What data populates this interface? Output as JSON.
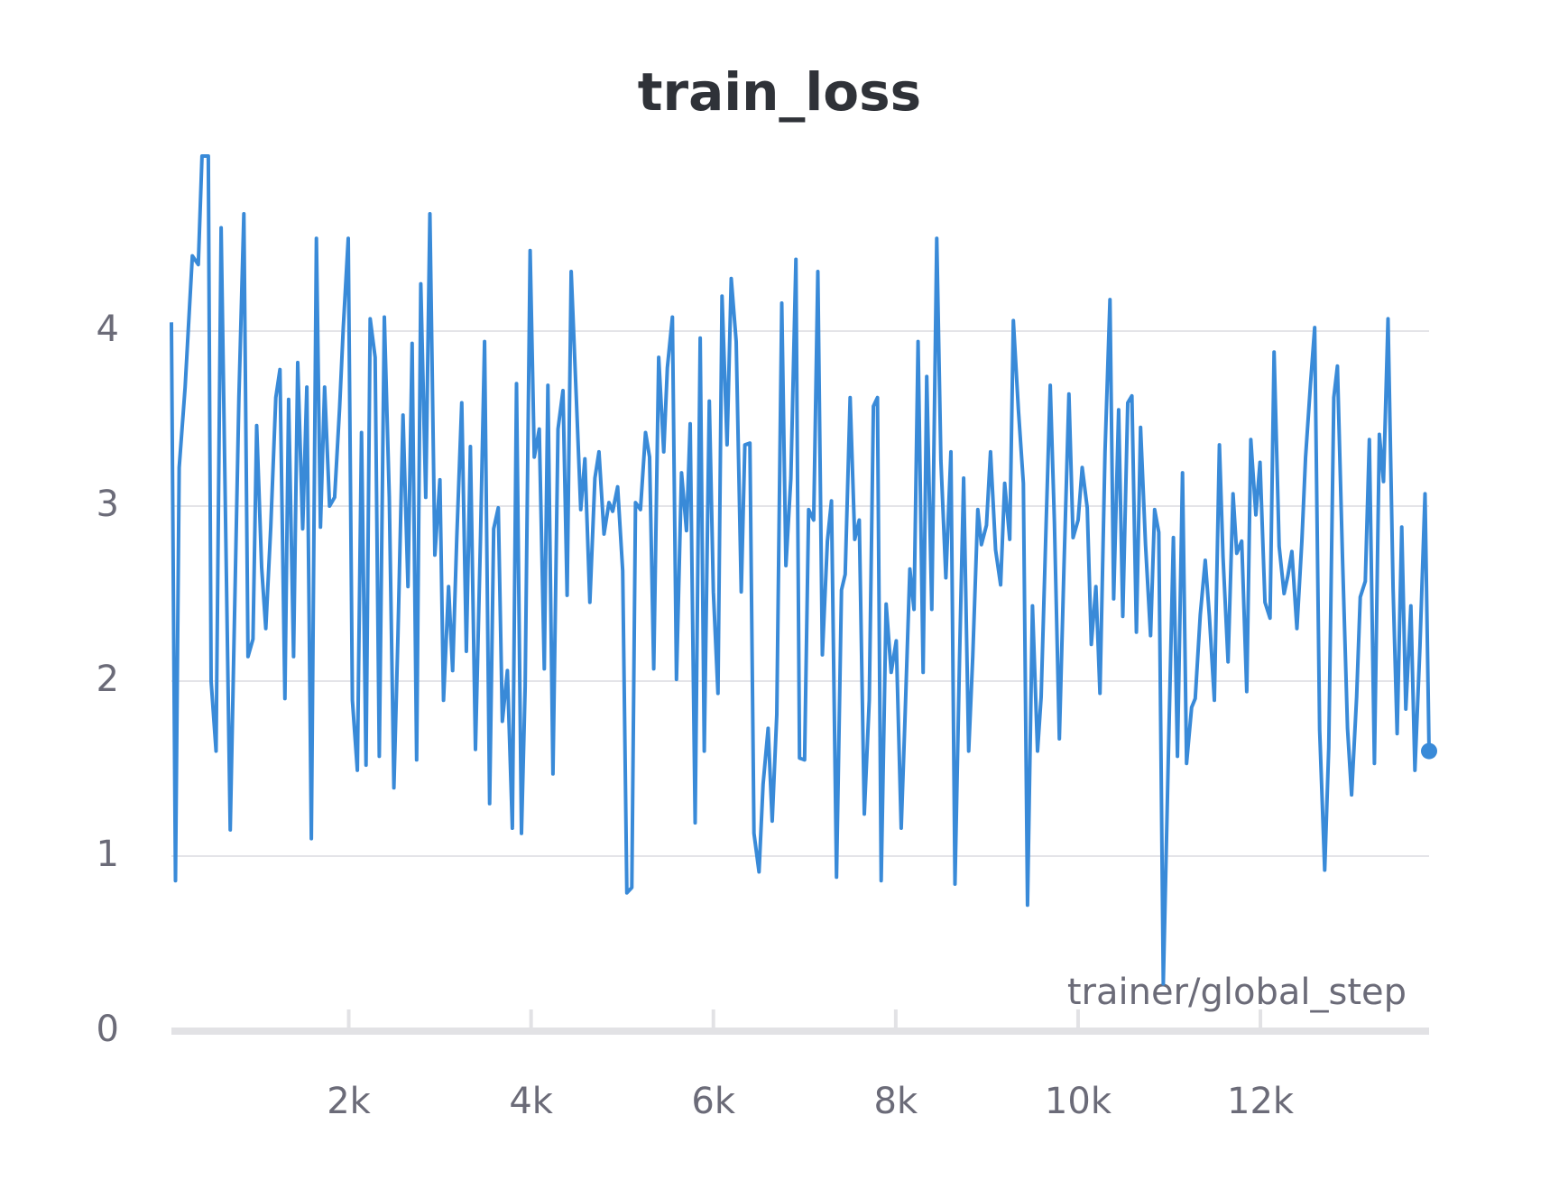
{
  "chart_data": {
    "type": "line",
    "title": "train_loss",
    "x_label": "trainer/global_step",
    "xlim": [
      55,
      13850
    ],
    "ylim": [
      0,
      5
    ],
    "yticks": [
      0,
      1,
      2,
      3,
      4
    ],
    "xticks": [
      {
        "value": 2000,
        "label": "2k"
      },
      {
        "value": 4000,
        "label": "4k"
      },
      {
        "value": 6000,
        "label": "6k"
      },
      {
        "value": 8000,
        "label": "8k"
      },
      {
        "value": 10000,
        "label": "10k"
      },
      {
        "value": 12000,
        "label": "12k"
      }
    ],
    "grid": true,
    "series": [
      {
        "color": "#398ad8",
        "x": [
          55,
          100,
          140,
          205,
          285,
          350,
          390,
          460,
          490,
          545,
          600,
          700,
          795,
          850,
          895,
          950,
          990,
          1045,
          1090,
          1145,
          1200,
          1245,
          1300,
          1340,
          1395,
          1440,
          1495,
          1540,
          1590,
          1645,
          1690,
          1735,
          1790,
          1845,
          1900,
          1940,
          1995,
          2040,
          2095,
          2140,
          2190,
          2235,
          2290,
          2335,
          2390,
          2445,
          2495,
          2540,
          2595,
          2650,
          2695,
          2745,
          2790,
          2845,
          2890,
          2945,
          3000,
          3040,
          3095,
          3140,
          3185,
          3240,
          3290,
          3335,
          3390,
          3445,
          3490,
          3545,
          3590,
          3640,
          3685,
          3740,
          3795,
          3840,
          3895,
          3935,
          3990,
          4035,
          4090,
          4145,
          4185,
          4240,
          4295,
          4350,
          4395,
          4440,
          4495,
          4545,
          4590,
          4645,
          4700,
          4745,
          4800,
          4855,
          4895,
          4950,
          5005,
          5050,
          5105,
          5145,
          5200,
          5255,
          5300,
          5345,
          5400,
          5455,
          5495,
          5550,
          5595,
          5650,
          5705,
          5745,
          5800,
          5855,
          5900,
          5955,
          6000,
          6050,
          6095,
          6150,
          6195,
          6250,
          6305,
          6345,
          6400,
          6445,
          6500,
          6545,
          6600,
          6645,
          6695,
          6750,
          6795,
          6850,
          6905,
          6945,
          7000,
          7045,
          7100,
          7145,
          7195,
          7250,
          7295,
          7350,
          7405,
          7445,
          7500,
          7550,
          7600,
          7655,
          7710,
          7755,
          7800,
          7840,
          7895,
          7950,
          8005,
          8060,
          8100,
          8155,
          8200,
          8245,
          8300,
          8340,
          8395,
          8450,
          8495,
          8550,
          8605,
          8650,
          8700,
          8745,
          8800,
          8845,
          8900,
          8940,
          8995,
          9040,
          9095,
          9150,
          9195,
          9250,
          9290,
          9345,
          9400,
          9445,
          9500,
          9555,
          9595,
          9650,
          9695,
          9740,
          9795,
          9845,
          9900,
          9945,
          10000,
          10045,
          10100,
          10145,
          10195,
          10240,
          10295,
          10350,
          10390,
          10445,
          10490,
          10545,
          10590,
          10640,
          10685,
          10740,
          10795,
          10840,
          10885,
          10935,
          10990,
          11045,
          11090,
          11145,
          11190,
          11245,
          11285,
          11340,
          11395,
          11440,
          11495,
          11550,
          11590,
          11645,
          11700,
          11740,
          11795,
          11850,
          11895,
          11950,
          11995,
          12050,
          12105,
          12150,
          12205,
          12260,
          12300,
          12345,
          12400,
          12455,
          12495,
          12550,
          12595,
          12650,
          12705,
          12750,
          12805,
          12845,
          12900,
          12955,
          13000,
          13055,
          13095,
          13150,
          13195,
          13250,
          13305,
          13350,
          13400,
          13455,
          13500,
          13550,
          13595,
          13650,
          13695,
          13750,
          13805,
          13850
        ],
        "values": [
          4.05,
          0.86,
          3.22,
          3.68,
          4.43,
          4.38,
          5.0,
          5.0,
          2.0,
          1.6,
          4.59,
          1.15,
          3.62,
          4.67,
          2.14,
          2.24,
          3.46,
          2.65,
          2.3,
          2.88,
          3.62,
          3.78,
          1.9,
          3.61,
          2.14,
          3.82,
          2.87,
          3.68,
          1.1,
          4.53,
          2.88,
          3.68,
          3.0,
          3.05,
          3.56,
          4.02,
          4.53,
          1.89,
          1.49,
          3.42,
          1.52,
          4.07,
          3.85,
          1.57,
          4.08,
          3.05,
          1.39,
          2.26,
          3.52,
          2.54,
          3.93,
          1.55,
          4.27,
          3.05,
          4.67,
          2.72,
          3.15,
          1.89,
          2.54,
          2.06,
          2.82,
          3.59,
          2.17,
          3.34,
          1.61,
          2.82,
          3.94,
          1.3,
          2.87,
          2.99,
          1.77,
          2.06,
          1.16,
          3.7,
          1.13,
          1.97,
          4.46,
          3.28,
          3.44,
          2.07,
          3.69,
          1.47,
          3.44,
          3.66,
          2.49,
          4.34,
          3.63,
          2.98,
          3.27,
          2.45,
          3.16,
          3.31,
          2.84,
          3.02,
          2.97,
          3.11,
          2.63,
          0.79,
          0.82,
          3.02,
          2.98,
          3.42,
          3.28,
          2.07,
          3.85,
          3.31,
          3.79,
          4.08,
          2.01,
          3.19,
          2.86,
          3.47,
          1.19,
          3.96,
          1.6,
          3.6,
          2.51,
          1.93,
          4.2,
          3.35,
          4.3,
          3.94,
          2.51,
          3.35,
          3.36,
          1.13,
          0.91,
          1.41,
          1.73,
          1.2,
          1.81,
          4.16,
          2.66,
          3.16,
          4.41,
          1.56,
          1.55,
          2.98,
          2.92,
          4.34,
          2.15,
          2.8,
          3.03,
          0.88,
          2.52,
          2.61,
          3.62,
          2.81,
          2.92,
          1.24,
          1.89,
          3.57,
          3.62,
          0.86,
          2.44,
          2.05,
          2.23,
          1.16,
          1.77,
          2.64,
          2.41,
          3.94,
          2.05,
          3.74,
          2.41,
          4.53,
          3.26,
          2.59,
          3.31,
          0.84,
          2.14,
          3.16,
          1.6,
          2.14,
          2.98,
          2.78,
          2.89,
          3.31,
          2.75,
          2.55,
          3.13,
          2.81,
          4.06,
          3.55,
          3.13,
          0.72,
          2.43,
          1.6,
          1.91,
          2.91,
          3.69,
          2.91,
          1.67,
          2.65,
          3.64,
          2.82,
          2.92,
          3.22,
          2.99,
          2.21,
          2.54,
          1.93,
          3.31,
          4.18,
          2.47,
          3.55,
          2.37,
          3.59,
          3.63,
          2.28,
          3.45,
          2.78,
          2.26,
          2.98,
          2.85,
          0.27,
          1.57,
          2.82,
          1.57,
          3.19,
          1.53,
          1.85,
          1.9,
          2.38,
          2.69,
          2.37,
          1.89,
          3.35,
          2.71,
          2.11,
          3.07,
          2.73,
          2.8,
          1.94,
          3.38,
          2.95,
          3.25,
          2.45,
          2.36,
          3.88,
          2.77,
          2.5,
          2.6,
          2.74,
          2.3,
          2.8,
          3.28,
          3.7,
          4.02,
          1.72,
          0.92,
          1.62,
          3.62,
          3.8,
          2.71,
          1.73,
          1.35,
          1.91,
          2.48,
          2.57,
          3.38,
          1.53,
          3.41,
          3.14,
          4.07,
          2.53,
          1.7,
          2.88,
          1.84,
          2.43,
          1.49,
          2.2,
          3.07,
          1.6
        ]
      }
    ]
  }
}
